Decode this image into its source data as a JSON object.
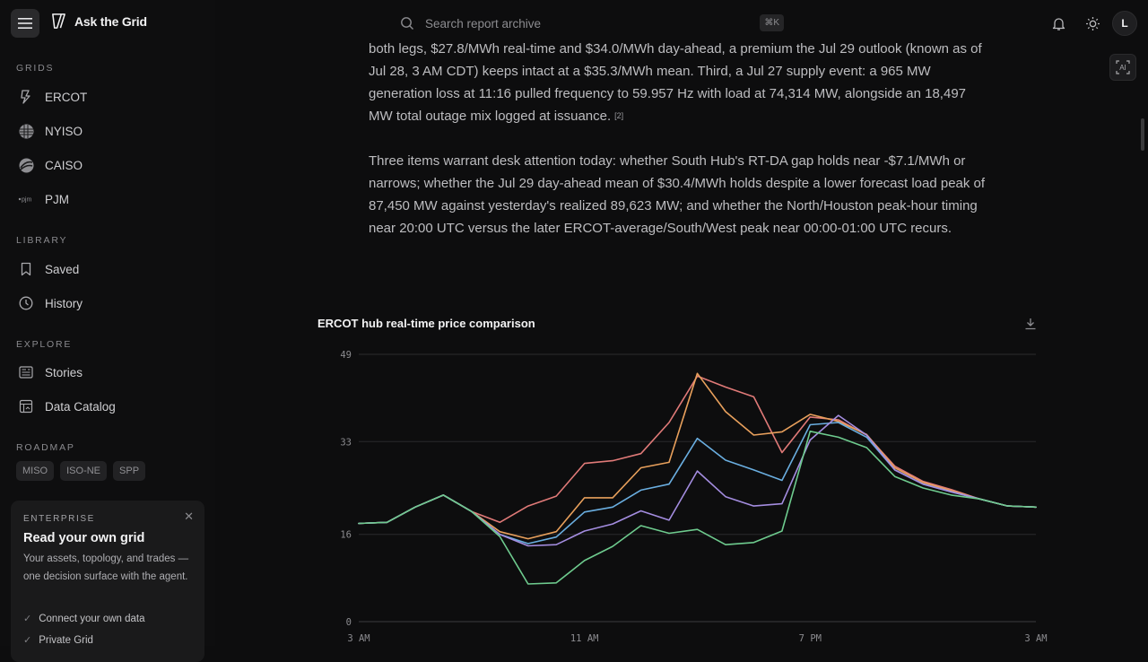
{
  "app": {
    "name": "Ask the Grid"
  },
  "search": {
    "placeholder": "Search report archive",
    "shortcut": "⌘K"
  },
  "user": {
    "initial": "L"
  },
  "ai_button": {
    "label": "AI"
  },
  "sidebar": {
    "grids_label": "GRIDS",
    "grids": [
      {
        "label": "ERCOT",
        "icon": "bolt-icon"
      },
      {
        "label": "NYISO",
        "icon": "nyiso-logo-icon"
      },
      {
        "label": "CAISO",
        "icon": "caiso-logo-icon"
      },
      {
        "label": "PJM",
        "icon": "pjm-logo-icon"
      }
    ],
    "library_label": "LIBRARY",
    "library": [
      {
        "label": "Saved",
        "icon": "bookmark-icon"
      },
      {
        "label": "History",
        "icon": "clock-icon"
      }
    ],
    "explore_label": "EXPLORE",
    "explore": [
      {
        "label": "Stories",
        "icon": "newspaper-icon"
      },
      {
        "label": "Data Catalog",
        "icon": "catalog-icon"
      }
    ],
    "roadmap_label": "ROADMAP",
    "roadmap": [
      "MISO",
      "ISO-NE",
      "SPP"
    ],
    "enterprise": {
      "tag": "ENTERPRISE",
      "title": "Read your own grid",
      "body": "Your assets, topology, and trades — one decision surface with the agent.",
      "checks": [
        "Connect your own data",
        "Private Grid"
      ]
    }
  },
  "article": {
    "p1": "both legs, $27.8/MWh real-time and $34.0/MWh day-ahead, a premium the Jul 29 outlook (known as of Jul 28, 3 AM CDT) keeps intact at a $35.3/MWh mean. Third, a Jul 27 supply event: a 965 MW generation loss at 11:16 pulled frequency to 59.957 Hz with load at 74,314 MW, alongside an 18,497 MW total outage mix logged at issuance.",
    "p1_cite": "[2]",
    "p2": "Three items warrant desk attention today: whether South Hub's RT-DA gap holds near -$7.1/MWh or narrows; whether the Jul 29 day-ahead mean of $30.4/MWh holds despite a lower forecast load peak of 87,450 MW against yesterday's realized 89,623 MW; and whether the North/Houston peak-hour timing near 20:00 UTC versus the later ERCOT-average/South/West peak near 00:00-01:00 UTC recurs."
  },
  "chart_data": {
    "type": "line",
    "title": "ERCOT hub real-time price comparison",
    "xlabel": "",
    "ylabel": "",
    "x": [
      0,
      1,
      2,
      3,
      4,
      5,
      6,
      7,
      8,
      9,
      10,
      11,
      12,
      13,
      14,
      15,
      16,
      17,
      18,
      19,
      20,
      21,
      22,
      23,
      24
    ],
    "x_tick_labels": [
      {
        "x": 0,
        "label": "3 AM"
      },
      {
        "x": 8,
        "label": "11 AM"
      },
      {
        "x": 16,
        "label": "7 PM"
      },
      {
        "x": 24,
        "label": "3 AM"
      }
    ],
    "y_ticks": [
      0,
      16,
      33,
      49
    ],
    "ylim": [
      0,
      49
    ],
    "grid": true,
    "legend": "none",
    "series": [
      {
        "color": "#e07a78",
        "values": [
          18,
          18.2,
          21,
          23.2,
          20.2,
          18.2,
          21.2,
          23,
          29,
          29.5,
          30.8,
          36.5,
          45,
          43,
          41.2,
          31,
          37.5,
          37,
          34.2,
          28.5,
          25.7,
          24.2,
          22.5,
          21.2,
          21
        ]
      },
      {
        "color": "#e8a05c",
        "values": [
          18,
          18.2,
          21,
          23.2,
          20.2,
          16.5,
          15.2,
          16.5,
          22.7,
          22.7,
          28.2,
          29.2,
          45.5,
          38.5,
          34.2,
          34.8,
          38,
          36.7,
          34.3,
          28.2,
          25.5,
          24,
          22.5,
          21.2,
          21
        ]
      },
      {
        "color": "#6aaee0",
        "values": [
          18,
          18.2,
          21,
          23.2,
          20.2,
          16,
          14.3,
          15.5,
          20.1,
          21,
          24.1,
          25.2,
          33.6,
          29.6,
          27.8,
          25.9,
          36.1,
          36.5,
          33.8,
          27.8,
          25.2,
          23.8,
          22.5,
          21.2,
          21
        ]
      },
      {
        "color": "#a48de0",
        "values": [
          18,
          18.2,
          21,
          23.2,
          20.2,
          16,
          13.9,
          14.1,
          16.6,
          17.9,
          20.3,
          18.6,
          27.6,
          22.9,
          21.2,
          21.6,
          33.3,
          37.8,
          34.2,
          27.8,
          25.2,
          23.8,
          22.5,
          21.2,
          21
        ]
      },
      {
        "color": "#6ecb8e",
        "values": [
          18,
          18.2,
          21,
          23.2,
          20.2,
          15.6,
          6.9,
          7.1,
          11.2,
          13.8,
          17.6,
          16.2,
          16.9,
          14.1,
          14.5,
          16.6,
          34.9,
          33.8,
          31.9,
          26.6,
          24.5,
          23.2,
          22.5,
          21.2,
          21
        ]
      }
    ]
  }
}
